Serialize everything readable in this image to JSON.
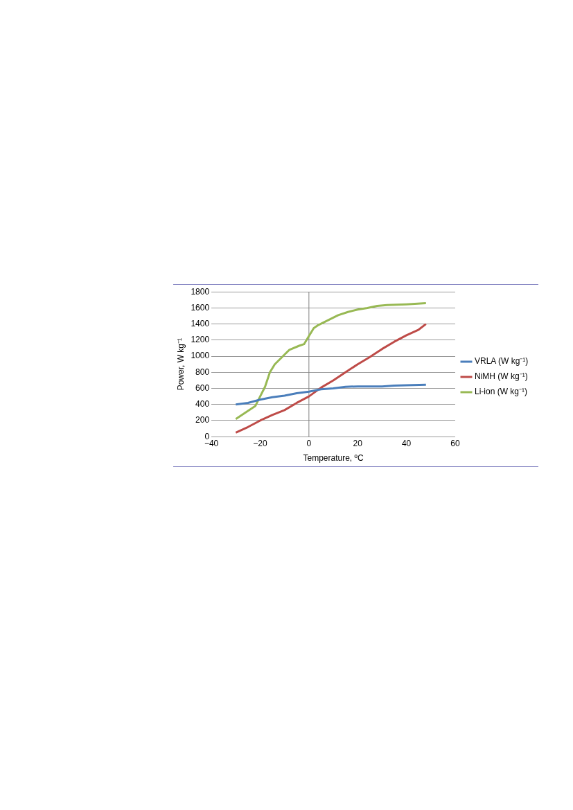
{
  "chart_data": {
    "type": "line",
    "xlabel": "Temperature, ºC",
    "ylabel": "Power, W kg⁻¹",
    "xlim": [
      -40,
      60
    ],
    "xticks": [
      {
        "value": -40,
        "label": "−40"
      },
      {
        "value": -20,
        "label": "−20"
      },
      0,
      20,
      40,
      60
    ],
    "ylim": [
      0,
      1800
    ],
    "yticks": [
      0,
      200,
      400,
      600,
      800,
      1000,
      1200,
      1400,
      1600,
      1800
    ],
    "grid": "y",
    "legend": "right",
    "marker": "none",
    "line_style": "solid",
    "ref_lines": [
      {
        "axis": "x",
        "value": 0,
        "color": "#808080"
      }
    ],
    "series": [
      {
        "name": "VRLA (W kg⁻¹)",
        "color": "#4a7ebb",
        "x": [
          -30,
          -25,
          -20,
          -15,
          -10,
          -5,
          0,
          5,
          10,
          15,
          20,
          30,
          35,
          40,
          48
        ],
        "values": [
          400,
          420,
          460,
          490,
          510,
          540,
          560,
          590,
          600,
          620,
          625,
          625,
          635,
          640,
          645
        ]
      },
      {
        "name": "NiMH (W kg⁻¹)",
        "color": "#be4b48",
        "x": [
          -30,
          -25,
          -20,
          -15,
          -10,
          -5,
          0,
          5,
          10,
          15,
          20,
          25,
          30,
          35,
          40,
          45,
          48
        ],
        "values": [
          50,
          120,
          200,
          270,
          330,
          420,
          500,
          610,
          700,
          800,
          900,
          990,
          1090,
          1180,
          1260,
          1330,
          1400
        ]
      },
      {
        "name": "Li-ion (W kg⁻¹)",
        "color": "#98b954",
        "x": [
          -30,
          -25,
          -22,
          -20,
          -18,
          -16,
          -14,
          -10,
          -8,
          -4,
          -2,
          0,
          2,
          4,
          8,
          12,
          16,
          20,
          24,
          28,
          32,
          40,
          48
        ],
        "values": [
          220,
          320,
          380,
          500,
          620,
          800,
          900,
          1020,
          1080,
          1130,
          1150,
          1250,
          1350,
          1390,
          1450,
          1510,
          1550,
          1580,
          1600,
          1625,
          1635,
          1645,
          1660
        ]
      }
    ]
  }
}
